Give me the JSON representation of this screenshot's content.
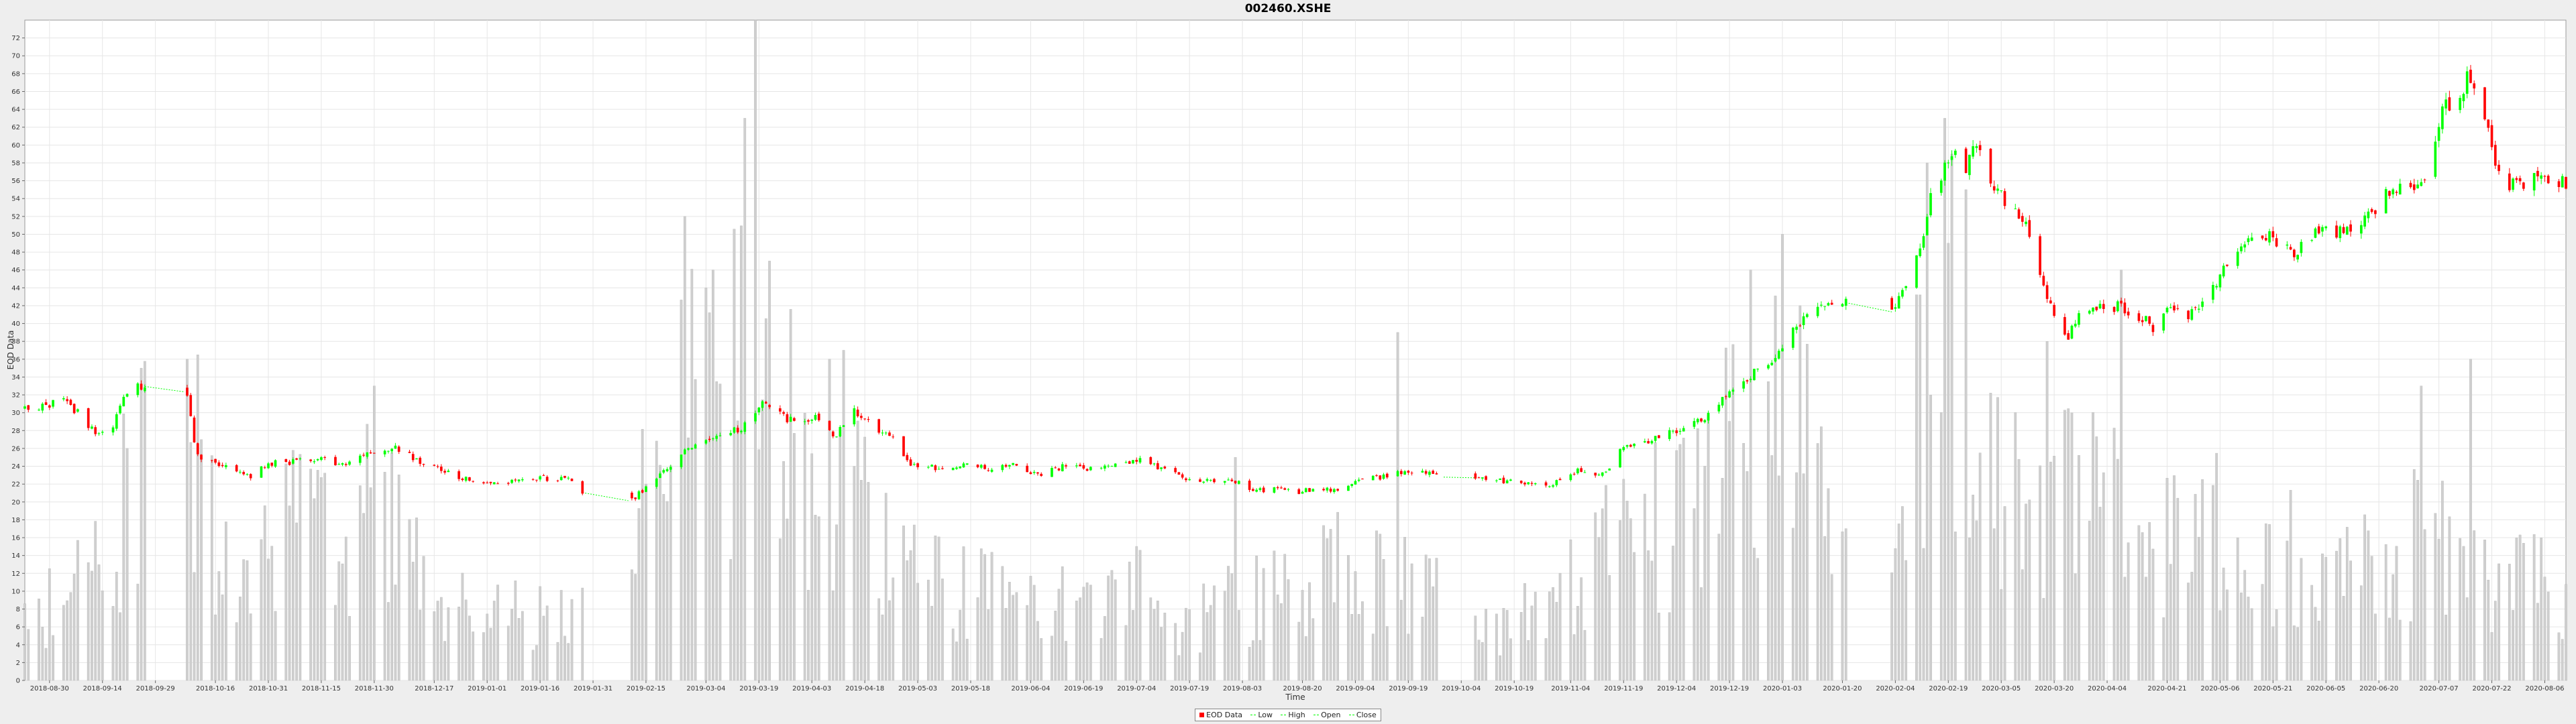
{
  "chart_data": {
    "type": "candlestick",
    "title": "002460.XSHE",
    "xlabel": "Time",
    "ylabel": "EOD Data",
    "ylim": [
      0,
      74
    ],
    "yticks": [
      0,
      2,
      4,
      6,
      8,
      10,
      12,
      14,
      16,
      18,
      20,
      22,
      24,
      26,
      28,
      30,
      32,
      34,
      36,
      38,
      40,
      42,
      44,
      46,
      48,
      50,
      52,
      54,
      56,
      58,
      60,
      62,
      64,
      66,
      68,
      70,
      72
    ],
    "xlim": [
      "2018-08-23",
      "2020-08-12"
    ],
    "xticks": [
      "2018-08-30",
      "2018-09-14",
      "2018-09-29",
      "2018-10-16",
      "2018-10-31",
      "2018-11-15",
      "2018-11-30",
      "2018-12-17",
      "2019-01-01",
      "2019-01-16",
      "2019-01-31",
      "2019-02-15",
      "2019-03-04",
      "2019-03-19",
      "2019-04-03",
      "2019-04-18",
      "2019-05-03",
      "2019-05-18",
      "2019-06-04",
      "2019-06-19",
      "2019-07-04",
      "2019-07-19",
      "2019-08-03",
      "2019-08-20",
      "2019-09-04",
      "2019-09-19",
      "2019-10-04",
      "2019-10-19",
      "2019-11-04",
      "2019-11-19",
      "2019-12-04",
      "2019-12-19",
      "2020-01-03",
      "2020-01-20",
      "2020-02-04",
      "2020-02-19",
      "2020-03-05",
      "2020-03-20",
      "2020-04-04",
      "2020-04-21",
      "2020-05-06",
      "2020-05-21",
      "2020-06-05",
      "2020-06-20",
      "2020-07-07",
      "2020-07-22",
      "2020-08-06"
    ],
    "grid": true,
    "legend_position": "bottom-center",
    "legend": [
      "EOD Data",
      "Low",
      "High",
      "Open",
      "Close"
    ],
    "colors": {
      "up": "#00ff00",
      "down": "#ff0000",
      "volume": "#cfcfcf",
      "plot_bg": "#ffffff",
      "grid": "#e6e6e6"
    },
    "anchors": [
      [
        "2018-08-24",
        30.6
      ],
      [
        "2018-09-03",
        31.2
      ],
      [
        "2018-09-07",
        30.0
      ],
      [
        "2018-09-10",
        28.2
      ],
      [
        "2018-09-13",
        27.9
      ],
      [
        "2018-09-17",
        28.6
      ],
      [
        "2018-09-21",
        32.4
      ],
      [
        "2018-09-25",
        33.0
      ],
      [
        "2018-10-08",
        32.3
      ],
      [
        "2018-10-10",
        26.4
      ],
      [
        "2018-10-12",
        24.7
      ],
      [
        "2018-10-19",
        23.8
      ],
      [
        "2018-10-26",
        22.7
      ],
      [
        "2018-10-31",
        24.3
      ],
      [
        "2018-11-08",
        24.5
      ],
      [
        "2018-11-16",
        25.0
      ],
      [
        "2018-11-21",
        24.0
      ],
      [
        "2018-11-30",
        25.6
      ],
      [
        "2018-12-07",
        26.0
      ],
      [
        "2018-12-12",
        24.8
      ],
      [
        "2018-12-20",
        23.5
      ],
      [
        "2018-12-28",
        22.3
      ],
      [
        "2019-01-05",
        22.2
      ],
      [
        "2019-01-15",
        22.7
      ],
      [
        "2019-01-25",
        22.5
      ],
      [
        "2019-01-31",
        19.6
      ],
      [
        "2019-02-11",
        20.2
      ],
      [
        "2019-02-22",
        24.2
      ],
      [
        "2019-03-01",
        26.8
      ],
      [
        "2019-03-08",
        27.2
      ],
      [
        "2019-03-15",
        28.5
      ],
      [
        "2019-03-20",
        31.0
      ],
      [
        "2019-03-29",
        28.9
      ],
      [
        "2019-04-05",
        29.6
      ],
      [
        "2019-04-09",
        27.2
      ],
      [
        "2019-04-12",
        28.5
      ],
      [
        "2019-04-15",
        30.3
      ],
      [
        "2019-04-19",
        28.8
      ],
      [
        "2019-04-26",
        27.2
      ],
      [
        "2019-04-30",
        24.4
      ],
      [
        "2019-05-08",
        23.9
      ],
      [
        "2019-05-17",
        24.1
      ],
      [
        "2019-05-24",
        23.6
      ],
      [
        "2019-05-31",
        24.3
      ],
      [
        "2019-06-06",
        23.0
      ],
      [
        "2019-06-14",
        24.0
      ],
      [
        "2019-06-21",
        23.6
      ],
      [
        "2019-06-28",
        24.0
      ],
      [
        "2019-07-04",
        24.8
      ],
      [
        "2019-07-12",
        23.6
      ],
      [
        "2019-07-19",
        22.5
      ],
      [
        "2019-07-26",
        22.4
      ],
      [
        "2019-08-01",
        22.4
      ],
      [
        "2019-08-06",
        21.2
      ],
      [
        "2019-08-14",
        21.4
      ],
      [
        "2019-08-19",
        20.9
      ],
      [
        "2019-08-23",
        21.6
      ],
      [
        "2019-08-30",
        21.4
      ],
      [
        "2019-09-05",
        22.5
      ],
      [
        "2019-09-11",
        22.8
      ],
      [
        "2019-09-17",
        23.2
      ],
      [
        "2019-09-24",
        23.2
      ],
      [
        "2019-09-30",
        22.7
      ],
      [
        "2019-10-10",
        22.7
      ],
      [
        "2019-10-18",
        22.3
      ],
      [
        "2019-10-25",
        21.8
      ],
      [
        "2019-10-31",
        22.2
      ],
      [
        "2019-11-07",
        23.7
      ],
      [
        "2019-11-13",
        23.0
      ],
      [
        "2019-11-18",
        25.6
      ],
      [
        "2019-11-22",
        26.5
      ],
      [
        "2019-11-29",
        27.3
      ],
      [
        "2019-12-06",
        28.3
      ],
      [
        "2019-12-11",
        29.1
      ],
      [
        "2019-12-17",
        31.5
      ],
      [
        "2019-12-24",
        34.0
      ],
      [
        "2019-12-31",
        35.5
      ],
      [
        "2020-01-07",
        39.8
      ],
      [
        "2020-01-14",
        41.5
      ],
      [
        "2020-01-20",
        42.5
      ],
      [
        "2020-01-23",
        42.0
      ],
      [
        "2020-02-03",
        41.3
      ],
      [
        "2020-02-06",
        44.0
      ],
      [
        "2020-02-11",
        48.0
      ],
      [
        "2020-02-14",
        54.0
      ],
      [
        "2020-02-18",
        57.5
      ],
      [
        "2020-02-21",
        59.2
      ],
      [
        "2020-02-24",
        57.5
      ],
      [
        "2020-02-27",
        60.0
      ],
      [
        "2020-03-03",
        55.0
      ],
      [
        "2020-03-06",
        53.8
      ],
      [
        "2020-03-10",
        52.5
      ],
      [
        "2020-03-13",
        50.0
      ],
      [
        "2020-03-17",
        44.5
      ],
      [
        "2020-03-20",
        40.5
      ],
      [
        "2020-03-24",
        38.0
      ],
      [
        "2020-03-27",
        41.5
      ],
      [
        "2020-04-01",
        41.5
      ],
      [
        "2020-04-07",
        42.0
      ],
      [
        "2020-04-10",
        41.0
      ],
      [
        "2020-04-15",
        40.5
      ],
      [
        "2020-04-17",
        39.2
      ],
      [
        "2020-04-22",
        42.0
      ],
      [
        "2020-04-27",
        41.0
      ],
      [
        "2020-04-30",
        42.0
      ],
      [
        "2020-05-07",
        46.0
      ],
      [
        "2020-05-12",
        49.0
      ],
      [
        "2020-05-18",
        50.2
      ],
      [
        "2020-05-22",
        49.3
      ],
      [
        "2020-05-27",
        48.0
      ],
      [
        "2020-06-01",
        50.0
      ],
      [
        "2020-06-05",
        50.8
      ],
      [
        "2020-06-10",
        50.0
      ],
      [
        "2020-06-15",
        51.5
      ],
      [
        "2020-06-19",
        53.0
      ],
      [
        "2020-06-24",
        55.3
      ],
      [
        "2020-06-30",
        54.5
      ],
      [
        "2020-07-03",
        56.5
      ],
      [
        "2020-07-06",
        60.0
      ],
      [
        "2020-07-08",
        64.5
      ],
      [
        "2020-07-13",
        65.0
      ],
      [
        "2020-07-15",
        68.0
      ],
      [
        "2020-07-20",
        63.0
      ],
      [
        "2020-07-23",
        58.0
      ],
      [
        "2020-07-27",
        55.0
      ],
      [
        "2020-07-29",
        56.0
      ],
      [
        "2020-07-31",
        55.5
      ],
      [
        "2020-08-04",
        57.3
      ],
      [
        "2020-08-07",
        55.5
      ],
      [
        "2020-08-11",
        55.8
      ]
    ],
    "volume_anchors": [
      [
        "2018-08-24",
        9
      ],
      [
        "2018-09-10",
        12
      ],
      [
        "2018-09-20",
        22
      ],
      [
        "2018-09-27",
        33
      ],
      [
        "2018-10-10",
        30
      ],
      [
        "2018-10-20",
        14
      ],
      [
        "2018-10-31",
        20
      ],
      [
        "2018-11-15",
        17
      ],
      [
        "2018-11-30",
        22
      ],
      [
        "2018-12-17",
        10
      ],
      [
        "2019-01-01",
        8
      ],
      [
        "2019-01-16",
        9
      ],
      [
        "2019-01-31",
        10
      ],
      [
        "2019-02-15",
        22
      ],
      [
        "2019-03-01",
        34
      ],
      [
        "2019-03-08",
        36
      ],
      [
        "2019-03-15",
        40
      ],
      [
        "2019-03-22",
        32
      ],
      [
        "2019-04-03",
        28
      ],
      [
        "2019-04-18",
        20
      ],
      [
        "2019-05-03",
        12
      ],
      [
        "2019-05-18",
        11
      ],
      [
        "2019-06-04",
        10
      ],
      [
        "2019-06-19",
        9
      ],
      [
        "2019-07-04",
        11
      ],
      [
        "2019-07-19",
        7
      ],
      [
        "2019-08-03",
        10
      ],
      [
        "2019-08-20",
        11
      ],
      [
        "2019-09-04",
        16
      ],
      [
        "2019-09-19",
        12
      ],
      [
        "2019-10-04",
        8
      ],
      [
        "2019-10-19",
        7
      ],
      [
        "2019-11-04",
        13
      ],
      [
        "2019-11-19",
        18
      ],
      [
        "2019-12-04",
        20
      ],
      [
        "2019-12-19",
        28
      ],
      [
        "2020-01-03",
        32
      ],
      [
        "2020-01-20",
        26
      ],
      [
        "2020-02-04",
        30
      ],
      [
        "2020-02-19",
        36
      ],
      [
        "2020-03-05",
        26
      ],
      [
        "2020-03-20",
        24
      ],
      [
        "2020-04-04",
        22
      ],
      [
        "2020-04-21",
        17
      ],
      [
        "2020-05-06",
        20
      ],
      [
        "2020-05-21",
        16
      ],
      [
        "2020-06-05",
        18
      ],
      [
        "2020-06-20",
        14
      ],
      [
        "2020-07-07",
        19
      ],
      [
        "2020-07-22",
        15
      ],
      [
        "2020-08-06",
        12
      ]
    ],
    "volume_spikes": [
      [
        "2018-09-21",
        26
      ],
      [
        "2018-09-25",
        35
      ],
      [
        "2018-10-08",
        36
      ],
      [
        "2018-11-04",
        31
      ],
      [
        "2018-11-30",
        33
      ],
      [
        "2019-02-26",
        52
      ],
      [
        "2019-03-06",
        46
      ],
      [
        "2019-03-15",
        63
      ],
      [
        "2019-03-18",
        74
      ],
      [
        "2019-03-22",
        47
      ],
      [
        "2019-04-08",
        36
      ],
      [
        "2019-04-12",
        37
      ],
      [
        "2019-08-01",
        25
      ],
      [
        "2019-09-16",
        39
      ],
      [
        "2019-12-25",
        46
      ],
      [
        "2020-01-03",
        50
      ],
      [
        "2020-01-08",
        42
      ],
      [
        "2020-02-13",
        58
      ],
      [
        "2020-02-18",
        63
      ],
      [
        "2020-02-20",
        59
      ],
      [
        "2020-02-24",
        55
      ],
      [
        "2020-03-18",
        38
      ],
      [
        "2020-04-08",
        46
      ],
      [
        "2020-07-02",
        33
      ],
      [
        "2020-07-16",
        36
      ]
    ],
    "gaps": [
      [
        "2018-09-26",
        "2018-10-07"
      ],
      [
        "2019-01-28",
        "2019-02-10"
      ],
      [
        "2019-09-29",
        "2019-10-08"
      ],
      [
        "2020-01-21",
        "2020-02-03"
      ]
    ]
  }
}
